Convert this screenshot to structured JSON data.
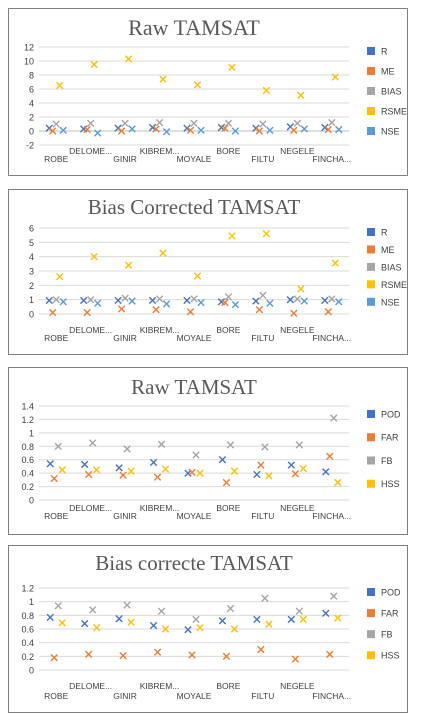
{
  "chart_data": [
    {
      "type": "scatter",
      "title": "Raw TAMSAT",
      "categories": [
        "ROBE",
        "DELOME...",
        "GINIR",
        "KIBREM...",
        "MOYALE",
        "BORE",
        "FILTU",
        "NEGELE",
        "FINCHA..."
      ],
      "ylim": [
        -2,
        12
      ],
      "yticks": [
        -2,
        0,
        2,
        4,
        6,
        8,
        10,
        12
      ],
      "legend_position": "right",
      "marker": "x",
      "series": [
        {
          "name": "R",
          "color": "#4472c4",
          "values": [
            0.4,
            0.3,
            0.4,
            0.5,
            0.4,
            0.5,
            0.4,
            0.6,
            0.5
          ]
        },
        {
          "name": "ME",
          "color": "#ed7d31",
          "values": [
            0.0,
            0.2,
            0.0,
            0.3,
            0.1,
            0.4,
            0.0,
            0.1,
            0.2
          ]
        },
        {
          "name": "BIAS",
          "color": "#a5a5a5",
          "values": [
            1.0,
            1.1,
            1.1,
            1.2,
            1.1,
            1.1,
            1.0,
            1.1,
            1.2
          ]
        },
        {
          "name": "RSME",
          "color": "#ffc000",
          "values": [
            6.5,
            9.5,
            10.3,
            7.4,
            6.6,
            9.1,
            5.8,
            5.1,
            7.7
          ]
        },
        {
          "name": "NSE",
          "color": "#5b9bd5",
          "values": [
            0.1,
            -0.3,
            0.3,
            -0.1,
            0.1,
            0.0,
            0.1,
            0.3,
            0.2
          ]
        }
      ]
    },
    {
      "type": "scatter",
      "title": "Bias Corrected TAMSAT",
      "categories": [
        "ROBE",
        "DELOME...",
        "GINIR",
        "KIBREM...",
        "MOYALE",
        "BORE",
        "FILTU",
        "NEGELE",
        "FINCHA..."
      ],
      "ylim": [
        0,
        6
      ],
      "yticks": [
        0,
        1,
        2,
        3,
        4,
        5,
        6
      ],
      "legend_position": "right",
      "marker": "x",
      "series": [
        {
          "name": "R",
          "color": "#4472c4",
          "values": [
            0.95,
            0.95,
            0.95,
            0.95,
            0.95,
            0.85,
            0.9,
            1.0,
            0.95
          ]
        },
        {
          "name": "ME",
          "color": "#ed7d31",
          "values": [
            0.1,
            0.1,
            0.35,
            0.3,
            0.15,
            0.8,
            0.3,
            0.05,
            0.15
          ]
        },
        {
          "name": "BIAS",
          "color": "#a5a5a5",
          "values": [
            1.0,
            1.0,
            1.1,
            1.05,
            1.05,
            1.2,
            1.3,
            1.05,
            1.05
          ]
        },
        {
          "name": "RSME",
          "color": "#ffc000",
          "values": [
            2.6,
            4.0,
            3.4,
            4.25,
            2.65,
            5.45,
            5.6,
            1.75,
            3.55
          ]
        },
        {
          "name": "NSE",
          "color": "#5b9bd5",
          "values": [
            0.85,
            0.75,
            0.9,
            0.7,
            0.8,
            0.65,
            0.75,
            0.9,
            0.85
          ]
        }
      ]
    },
    {
      "type": "scatter",
      "title": "Raw TAMSAT",
      "categories": [
        "ROBE",
        "DELOME...",
        "GINIR",
        "KIBREM...",
        "MOYALE",
        "BORE",
        "FILTU",
        "NEGELE",
        "FINCHA..."
      ],
      "ylim": [
        0,
        1.4
      ],
      "yticks": [
        0,
        0.2,
        0.4,
        0.6,
        0.8,
        1,
        1.2,
        1.4
      ],
      "legend_position": "right",
      "marker": "x",
      "series": [
        {
          "name": "POD",
          "color": "#4472c4",
          "values": [
            0.54,
            0.53,
            0.48,
            0.56,
            0.4,
            0.6,
            0.38,
            0.52,
            0.42
          ]
        },
        {
          "name": "FAR",
          "color": "#ed7d31",
          "values": [
            0.32,
            0.38,
            0.37,
            0.34,
            0.41,
            0.26,
            0.52,
            0.39,
            0.65
          ]
        },
        {
          "name": "FB",
          "color": "#a5a5a5",
          "values": [
            0.8,
            0.85,
            0.76,
            0.83,
            0.67,
            0.82,
            0.79,
            0.82,
            1.22
          ]
        },
        {
          "name": "HSS",
          "color": "#ffc000",
          "values": [
            0.45,
            0.45,
            0.43,
            0.46,
            0.4,
            0.43,
            0.36,
            0.47,
            0.26
          ]
        }
      ]
    },
    {
      "type": "scatter",
      "title": "Bias correcte TAMSAT",
      "categories": [
        "ROBE",
        "DELOME...",
        "GINIR",
        "KIBREM...",
        "MOYALE",
        "BORE",
        "FILTU",
        "NEGELE",
        "FINCHA..."
      ],
      "ylim": [
        0,
        1.2
      ],
      "yticks": [
        0,
        0.2,
        0.4,
        0.6,
        0.8,
        1,
        1.2
      ],
      "legend_position": "right",
      "marker": "x",
      "series": [
        {
          "name": "POD",
          "color": "#4472c4",
          "values": [
            0.77,
            0.68,
            0.75,
            0.65,
            0.59,
            0.72,
            0.74,
            0.74,
            0.83
          ]
        },
        {
          "name": "FAR",
          "color": "#ed7d31",
          "values": [
            0.18,
            0.23,
            0.21,
            0.26,
            0.22,
            0.2,
            0.3,
            0.16,
            0.23
          ]
        },
        {
          "name": "FB",
          "color": "#a5a5a5",
          "values": [
            0.94,
            0.88,
            0.95,
            0.86,
            0.74,
            0.9,
            1.05,
            0.86,
            1.08
          ]
        },
        {
          "name": "HSS",
          "color": "#ffc000",
          "values": [
            0.69,
            0.62,
            0.7,
            0.6,
            0.62,
            0.6,
            0.67,
            0.74,
            0.76
          ]
        }
      ]
    }
  ]
}
